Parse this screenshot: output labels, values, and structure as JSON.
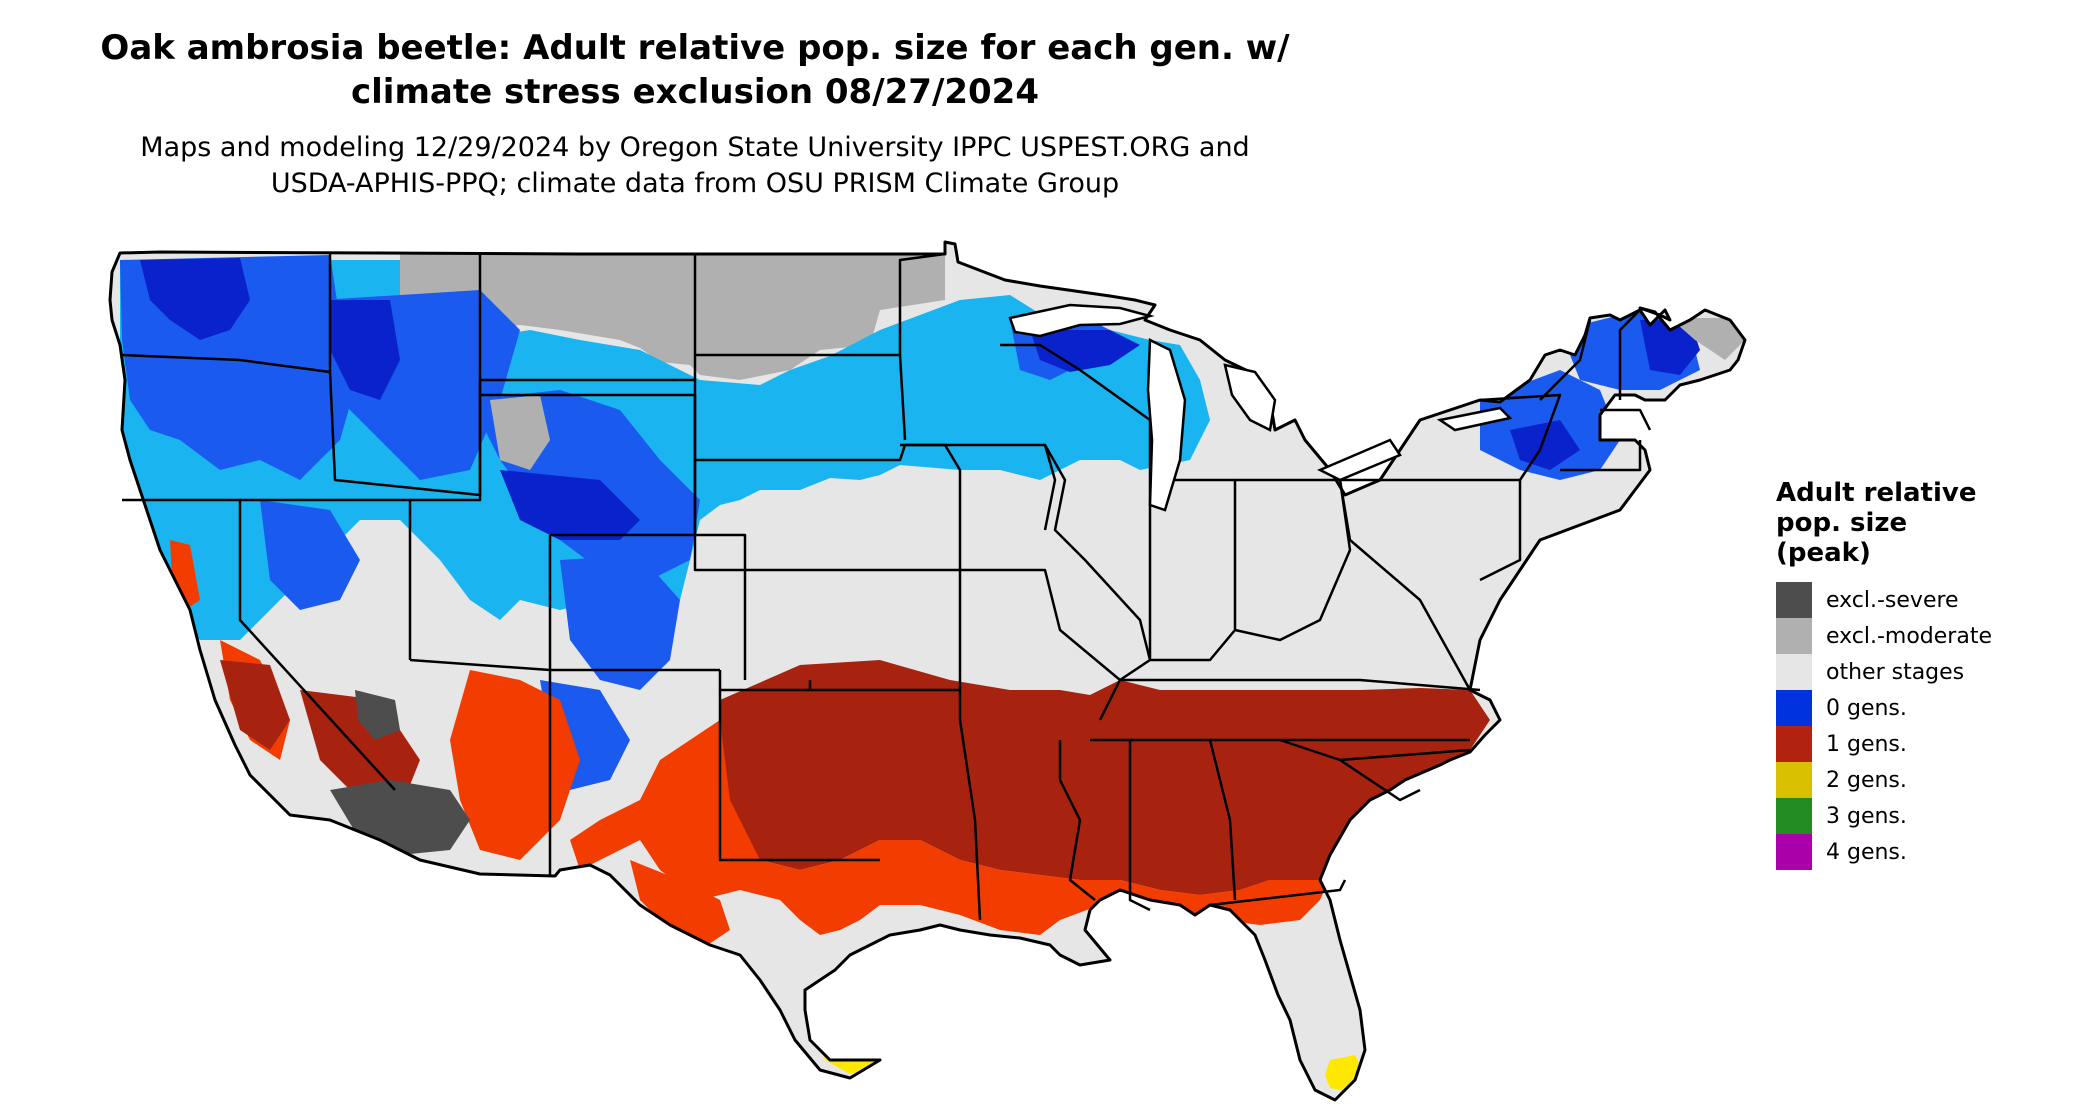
{
  "title": {
    "line1": "Oak ambrosia beetle: Adult relative pop. size for each gen. w/",
    "line2": "climate stress exclusion 08/27/2024"
  },
  "subtitle": {
    "line1": "Maps and modeling 12/29/2024 by Oregon State University IPPC USPEST.ORG and",
    "line2": "USDA-APHIS-PPQ; climate data from OSU PRISM Climate Group"
  },
  "legend": {
    "title_lines": [
      "Adult relative",
      "pop. size",
      "(peak)"
    ],
    "items": [
      {
        "label": "excl.-severe",
        "color": "#4d4d4d"
      },
      {
        "label": "excl.-moderate",
        "color": "#b0b0b0"
      },
      {
        "label": "other stages",
        "color": "#e6e6e6"
      },
      {
        "label": "0 gens.",
        "color": "#0033dd"
      },
      {
        "label": "1 gens.",
        "color": "#b22210"
      },
      {
        "label": "2 gens.",
        "color": "#d8c000"
      },
      {
        "label": "3 gens.",
        "color": "#228b22"
      },
      {
        "label": "4 gens.",
        "color": "#aa00aa"
      }
    ]
  },
  "map_colors": {
    "base_gray": "#e6e6e6",
    "excl_moderate": "#b0b0b0",
    "excl_severe": "#4d4d4d",
    "deep_blue": "#0a22cc",
    "mid_blue": "#1a5aee",
    "light_blue": "#1ab4f0",
    "dark_red": "#a8230f",
    "orange_red": "#f23c00",
    "yellow": "#ffe800",
    "border": "#000000"
  }
}
